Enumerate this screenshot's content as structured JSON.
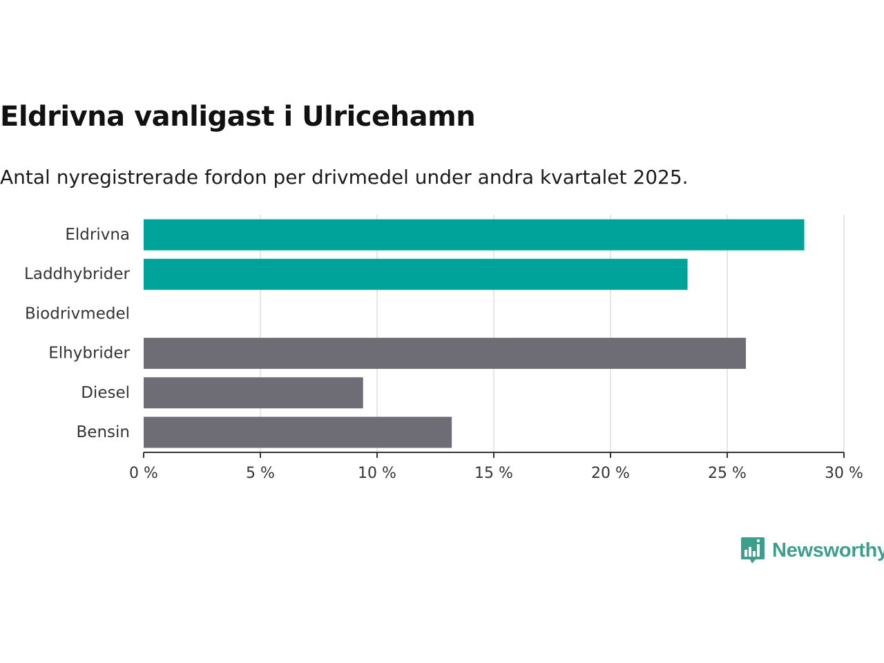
{
  "title": "Eldrivna vanligast i Ulricehamn",
  "subtitle": "Antal nyregistrerade fordon per drivmedel under andra kvartalet 2025.",
  "brand": "Newsworthy",
  "chart_data": {
    "type": "bar",
    "orientation": "horizontal",
    "categories": [
      "Eldrivna",
      "Laddhybrider",
      "Biodrivmedel",
      "Elhybrider",
      "Diesel",
      "Bensin"
    ],
    "values": [
      28.3,
      23.3,
      0,
      25.8,
      9.4,
      13.2
    ],
    "bar_colors": [
      "#00a39a",
      "#00a39a",
      "#00a39a",
      "#6e6c74",
      "#6e6c74",
      "#6e6c74"
    ],
    "xlim": [
      0,
      30
    ],
    "x_ticks": [
      0,
      5,
      10,
      15,
      20,
      25,
      30
    ],
    "x_tick_labels": [
      "0 %",
      "5 %",
      "10 %",
      "15 %",
      "20 %",
      "25 %",
      "30 %"
    ],
    "grid": true,
    "unit": "%"
  },
  "colors": {
    "highlight": "#00a39a",
    "other": "#6e6c74",
    "grid": "#dddddd",
    "axis": "#333333",
    "brand": "#3e9e8c"
  }
}
